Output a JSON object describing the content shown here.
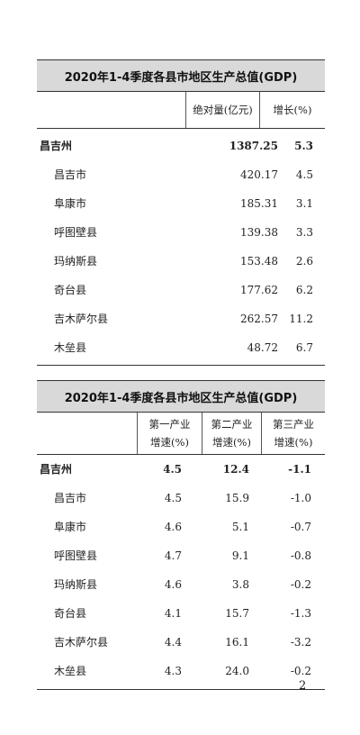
{
  "table1": {
    "title": "2020年1-4季度各县市地区生产总值(GDP)",
    "columns": [
      "绝对量(亿元)",
      "增长(%)"
    ],
    "rows": [
      {
        "name": "昌吉州",
        "value": "1387.25",
        "growth": "5.3",
        "bold": true
      },
      {
        "name": "昌吉市",
        "value": "420.17",
        "growth": "4.5"
      },
      {
        "name": "阜康市",
        "value": "185.31",
        "growth": "3.1"
      },
      {
        "name": "呼图壁县",
        "value": "139.38",
        "growth": "3.3"
      },
      {
        "name": "玛纳斯县",
        "value": "153.48",
        "growth": "2.6"
      },
      {
        "name": "奇台县",
        "value": "177.62",
        "growth": "6.2"
      },
      {
        "name": "吉木萨尔县",
        "value": "262.57",
        "growth": "11.2"
      },
      {
        "name": "木垒县",
        "value": "48.72",
        "growth": "6.7"
      }
    ]
  },
  "table2": {
    "title": "2020年1-4季度各县市地区生产总值(GDP)",
    "columns": [
      {
        "line1": "第一产业",
        "line2": "增速(%)"
      },
      {
        "line1": "第二产业",
        "line2": "增速(%)"
      },
      {
        "line1": "第三产业",
        "line2": "增速(%)"
      }
    ],
    "rows": [
      {
        "name": "昌吉州",
        "v1": "4.5",
        "v2": "12.4",
        "v3": "-1.1",
        "bold": true
      },
      {
        "name": "昌吉市",
        "v1": "4.5",
        "v2": "15.9",
        "v3": "-1.0"
      },
      {
        "name": "阜康市",
        "v1": "4.6",
        "v2": "5.1",
        "v3": "-0.7"
      },
      {
        "name": "呼图壁县",
        "v1": "4.7",
        "v2": "9.1",
        "v3": "-0.8"
      },
      {
        "name": "玛纳斯县",
        "v1": "4.6",
        "v2": "3.8",
        "v3": "-0.2"
      },
      {
        "name": "奇台县",
        "v1": "4.1",
        "v2": "15.7",
        "v3": "-1.3"
      },
      {
        "name": "吉木萨尔县",
        "v1": "4.4",
        "v2": "16.1",
        "v3": "-3.2"
      },
      {
        "name": "木垒县",
        "v1": "4.3",
        "v2": "24.0",
        "v3": "-0.2"
      }
    ]
  },
  "page_number": "2"
}
